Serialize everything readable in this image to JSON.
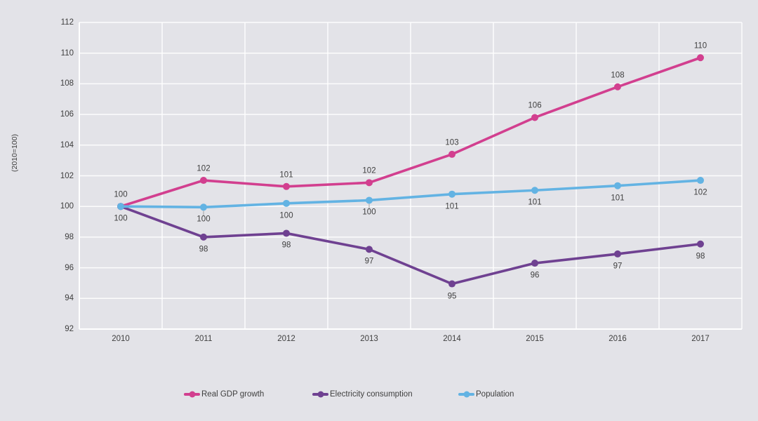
{
  "style": {
    "background": "#e3e3e8",
    "gridline": "#ffffff",
    "axis_line": "#ffffff",
    "text_color": "#3f3f3f",
    "leader_line": "#a6a6a6"
  },
  "chart_data": {
    "type": "line",
    "title": "",
    "y_axis_title": "(2010=100)",
    "ylim": [
      92,
      112
    ],
    "ytick_step": 2,
    "grid": true,
    "legend_position": "bottom",
    "categories": [
      "2010",
      "2011",
      "2012",
      "2013",
      "2014",
      "2015",
      "2016",
      "2017"
    ],
    "series": [
      {
        "name": "Real GDP growth",
        "color": "#d23f8f",
        "values": [
          100,
          101.7,
          101.3,
          101.55,
          103.4,
          105.8,
          107.8,
          109.7
        ],
        "labels": [
          "100",
          "102",
          "101",
          "102",
          "103",
          "106",
          "108",
          "110"
        ],
        "label_position": "above",
        "leader_line_indices": []
      },
      {
        "name": "Electricity consumption",
        "color": "#6f4191",
        "values": [
          100,
          98.0,
          98.25,
          97.2,
          94.95,
          96.3,
          96.9,
          97.55
        ],
        "labels": [
          "100",
          "98",
          "98",
          "97",
          "95",
          "96",
          "97",
          "98"
        ],
        "label_position": "below",
        "leader_line_indices": []
      },
      {
        "name": "Population",
        "color": "#63b3e3",
        "values": [
          100,
          99.95,
          100.2,
          100.4,
          100.8,
          101.05,
          101.35,
          101.7
        ],
        "labels": [
          null,
          "100",
          "100",
          "100",
          "101",
          "101",
          "101",
          "102"
        ],
        "label_position": "below",
        "leader_line_indices": [
          1,
          3
        ]
      }
    ]
  }
}
